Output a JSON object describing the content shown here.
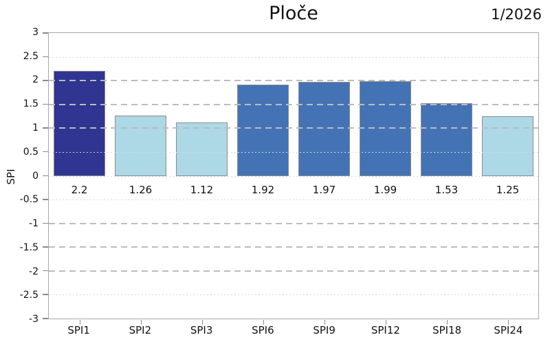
{
  "chart_data": {
    "type": "bar",
    "title": "Ploče",
    "period_label": "1/2026",
    "ylabel": "SPI",
    "xlabel": "",
    "categories": [
      "SPI1",
      "SPI2",
      "SPI3",
      "SPI6",
      "SPI9",
      "SPI12",
      "SPI18",
      "SPI24"
    ],
    "values": [
      2.2,
      1.26,
      1.12,
      1.92,
      1.97,
      1.99,
      1.53,
      1.25
    ],
    "value_labels": [
      "2.2",
      "1.26",
      "1.12",
      "1.92",
      "1.97",
      "1.99",
      "1.53",
      "1.25"
    ],
    "bar_colors": [
      "#2f3590",
      "#add8e6",
      "#add8e6",
      "#4373b5",
      "#4373b5",
      "#4373b5",
      "#4373b5",
      "#add8e6"
    ],
    "bar_edge_color": "#8c8c8c",
    "ylim": [
      -3,
      3
    ],
    "ytick_step": 0.5,
    "ytick_labels": [
      "3",
      "2.5",
      "2",
      "1.5",
      "1",
      "0.5",
      "0",
      "-0.5",
      "-1",
      "-1.5",
      "-2",
      "-2.5",
      "-3"
    ],
    "grid": {
      "dashed_levels": [
        2,
        1.5,
        1,
        -1,
        -1.5,
        -2
      ],
      "dotted_levels": [
        2.5,
        0.5,
        0,
        -0.5,
        -2.5
      ],
      "dashed_color": "#bcbcbc",
      "dotted_color": "#d9d9d9"
    },
    "legend": "none",
    "axis_border_color": "#a8a8a8"
  }
}
